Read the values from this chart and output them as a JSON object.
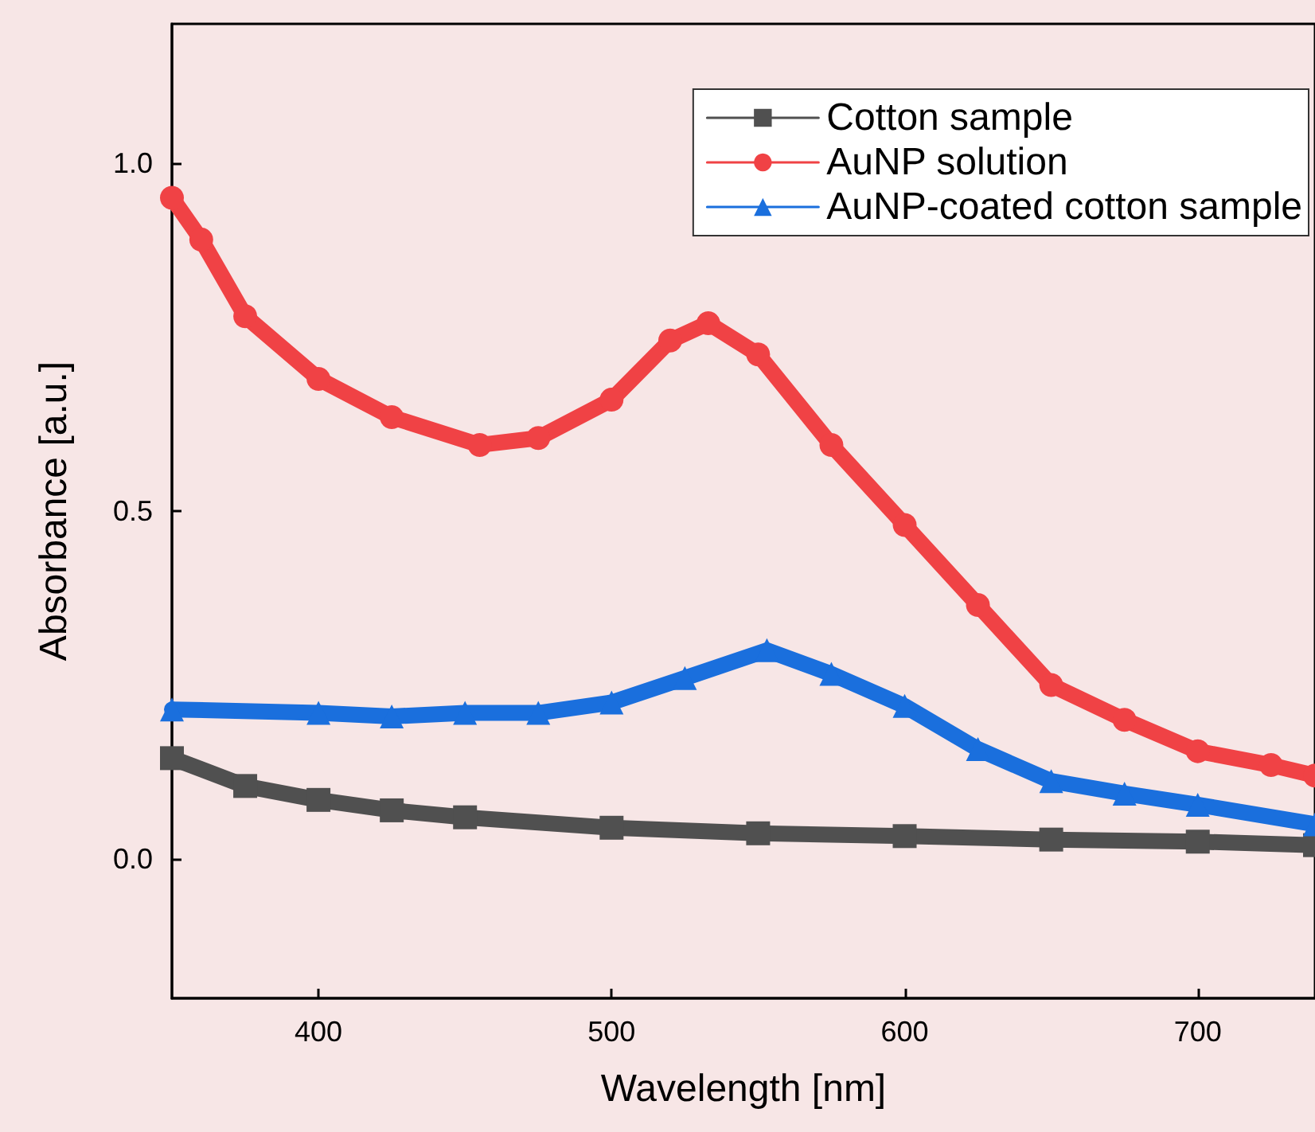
{
  "chart_data": {
    "type": "line",
    "xlabel": "Wavelength [nm]",
    "ylabel": "Absorbance [a.u.]",
    "xlim": [
      350,
      740
    ],
    "xticks": [
      400,
      500,
      600,
      700
    ],
    "ylim": [
      -0.2,
      1.2
    ],
    "yticks": [
      {
        "value": 0,
        "label": "0.0"
      },
      {
        "value": 0.5,
        "label": "0.5"
      },
      {
        "value": 1,
        "label": "1.0"
      }
    ],
    "grid": false,
    "legend": "top right",
    "series": [
      {
        "name": "Cotton sample",
        "color": "#505050",
        "marker": "square",
        "x": [
          350,
          375,
          400,
          425,
          450,
          500,
          550,
          600,
          650,
          700,
          740
        ],
        "values": [
          0.145,
          0.105,
          0.085,
          0.07,
          0.06,
          0.045,
          0.037,
          0.033,
          0.028,
          0.025,
          0.02
        ]
      },
      {
        "name": "AuNP solution",
        "color": "#f04245",
        "marker": "circle",
        "x": [
          350,
          360,
          375,
          400,
          425,
          455,
          475,
          500,
          520,
          533,
          550,
          575,
          600,
          625,
          650,
          675,
          700,
          725,
          740
        ],
        "values": [
          0.95,
          0.89,
          0.78,
          0.69,
          0.635,
          0.595,
          0.605,
          0.66,
          0.745,
          0.77,
          0.725,
          0.595,
          0.48,
          0.365,
          0.25,
          0.2,
          0.155,
          0.135,
          0.12
        ]
      },
      {
        "name": "AuNP-coated cotton sample",
        "color": "#1a6fdd",
        "marker": "triangle",
        "x": [
          350,
          400,
          425,
          450,
          475,
          500,
          525,
          553,
          575,
          600,
          625,
          650,
          675,
          700,
          740
        ],
        "values": [
          0.215,
          0.21,
          0.205,
          0.21,
          0.21,
          0.225,
          0.26,
          0.3,
          0.266,
          0.22,
          0.158,
          0.112,
          0.094,
          0.078,
          0.05
        ]
      }
    ]
  }
}
